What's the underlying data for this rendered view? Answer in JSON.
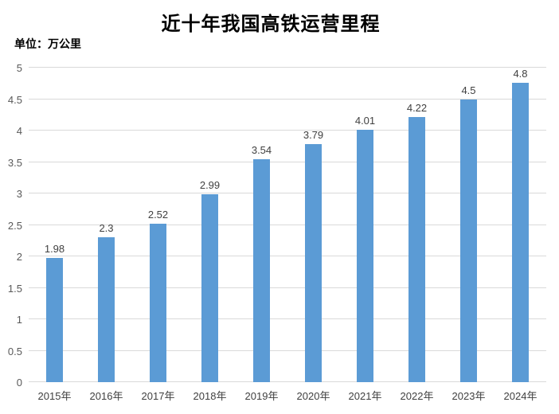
{
  "title": "近十年我国高铁运营里程",
  "unit_label": "单位：万公里",
  "colors": {
    "bar": "#5b9bd5",
    "gridline": "#d9d9d9",
    "y_tick_label": "#595959",
    "data_label": "#404040",
    "x_tick_label": "#404040",
    "title": "#000000",
    "background": "#ffffff"
  },
  "chart_data": {
    "type": "bar",
    "title": "近十年我国高铁运营里程",
    "xlabel": "",
    "ylabel": "单位：万公里",
    "categories": [
      "2015年",
      "2016年",
      "2017年",
      "2018年",
      "2019年",
      "2020年",
      "2021年",
      "2022年",
      "2023年",
      "2024年"
    ],
    "values": [
      1.98,
      2.3,
      2.52,
      2.99,
      3.54,
      3.79,
      4.01,
      4.22,
      4.5,
      4.8
    ],
    "value_labels": [
      "1.98",
      "2.3",
      "2.52",
      "2.99",
      "3.54",
      "3.79",
      "4.01",
      "4.22",
      "4.5",
      "4.8"
    ],
    "ylim": [
      0,
      5
    ],
    "yticks": [
      0,
      0.5,
      1,
      1.5,
      2,
      2.5,
      3,
      3.5,
      4,
      4.5,
      5
    ],
    "ytick_labels": [
      "0",
      "0.5",
      "1",
      "1.5",
      "2",
      "2.5",
      "3",
      "3.5",
      "4",
      "4.5",
      "5"
    ],
    "grid": true,
    "legend": false,
    "data_labels_shown": true
  }
}
